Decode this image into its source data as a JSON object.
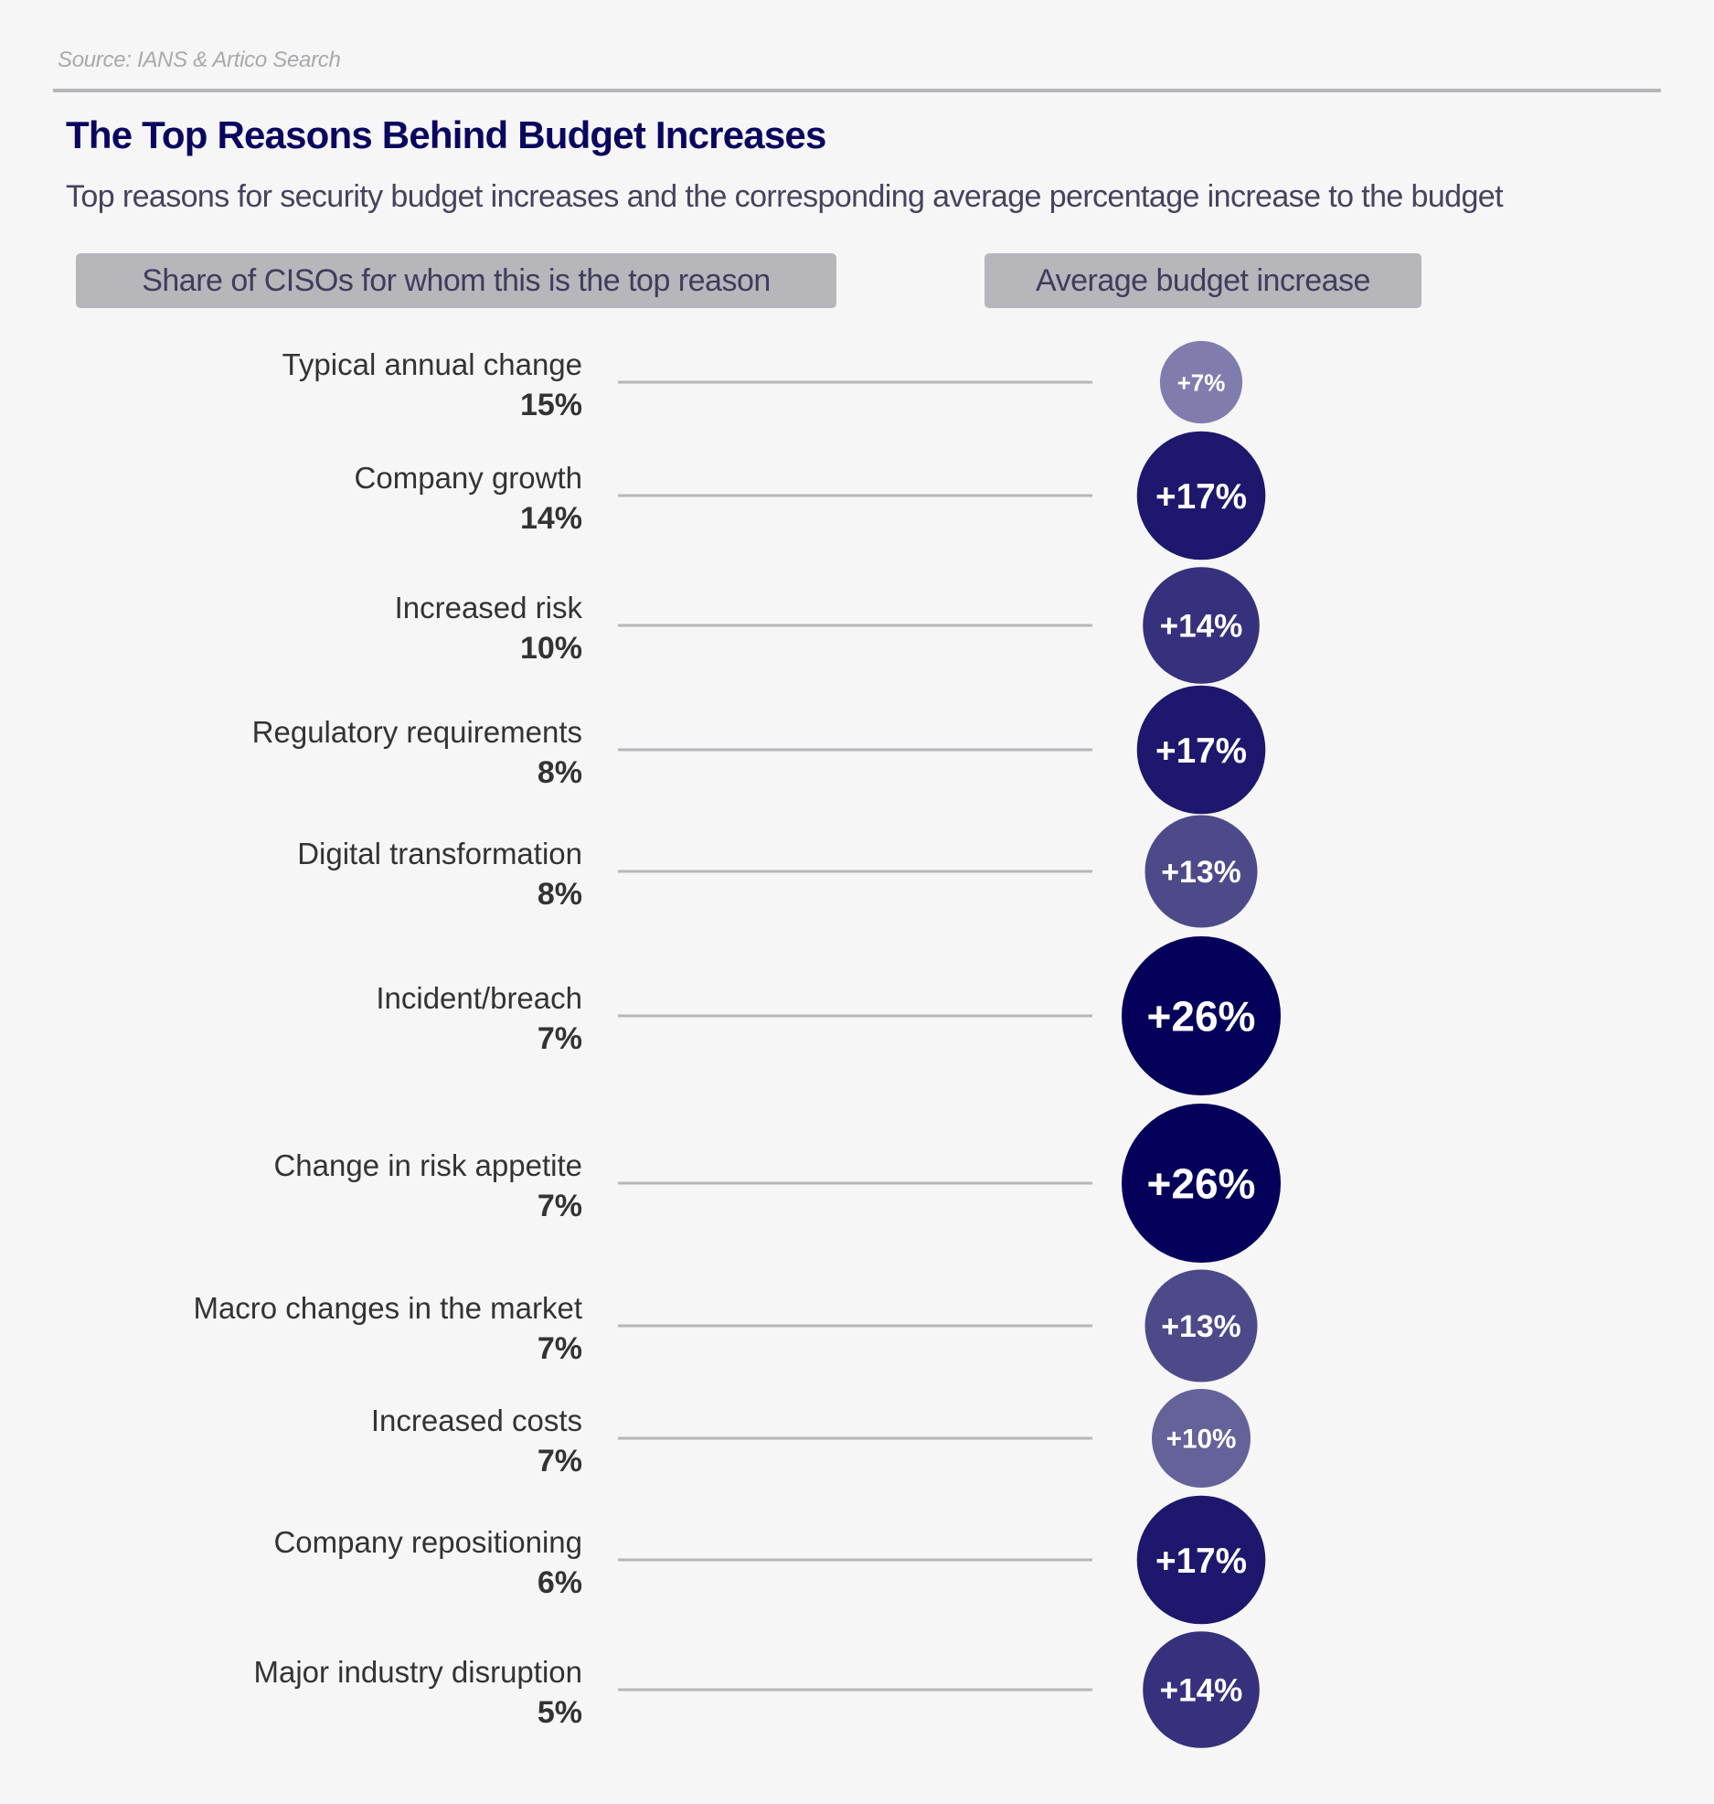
{
  "source": "Source: IANS & Artico Search",
  "title": "The Top Reasons Behind Budget Increases",
  "subtitle": "Top reasons for security budget increases and the corresponding average percentage increase to the budget",
  "headers": {
    "left": "Share of CISOs for whom this is the top reason",
    "right": "Average budget increase"
  },
  "colors": {
    "title": "#0a0660",
    "connector": "#b7b6bb",
    "bubble_scale": {
      "7": "#807cae",
      "10": "#65629a",
      "13": "#4e4a8a",
      "14": "#37307c",
      "17": "#1e176d",
      "26": "#05005a"
    }
  },
  "chart_data": {
    "type": "bubble-list",
    "title": "The Top Reasons Behind Budget Increases",
    "subtitle": "Top reasons for security budget increases and the corresponding average percentage increase to the budget",
    "series": [
      {
        "name": "Share of CISOs for whom this is the top reason",
        "unit": "%"
      },
      {
        "name": "Average budget increase",
        "unit": "%"
      }
    ],
    "categories": [
      "Typical annual change",
      "Company growth",
      "Increased risk",
      "Regulatory requirements",
      "Digital transformation",
      "Incident/breach",
      "Change in risk appetite",
      "Macro changes in the market",
      "Increased costs",
      "Company repositioning",
      "Major industry disruption"
    ],
    "share": [
      15,
      14,
      10,
      8,
      8,
      7,
      7,
      7,
      7,
      6,
      5
    ],
    "share_labels": [
      "15%",
      "14%",
      "10%",
      "8%",
      "8%",
      "7%",
      "7%",
      "7%",
      "7%",
      "6%",
      "5%"
    ],
    "increase": [
      7,
      17,
      14,
      17,
      13,
      26,
      26,
      13,
      10,
      17,
      14
    ],
    "increase_labels": [
      "+7%",
      "+17%",
      "+14%",
      "+17%",
      "+13%",
      "+26%",
      "+26%",
      "+13%",
      "+10%",
      "+17%",
      "+14%"
    ],
    "source": "Source: IANS & Artico Search"
  }
}
